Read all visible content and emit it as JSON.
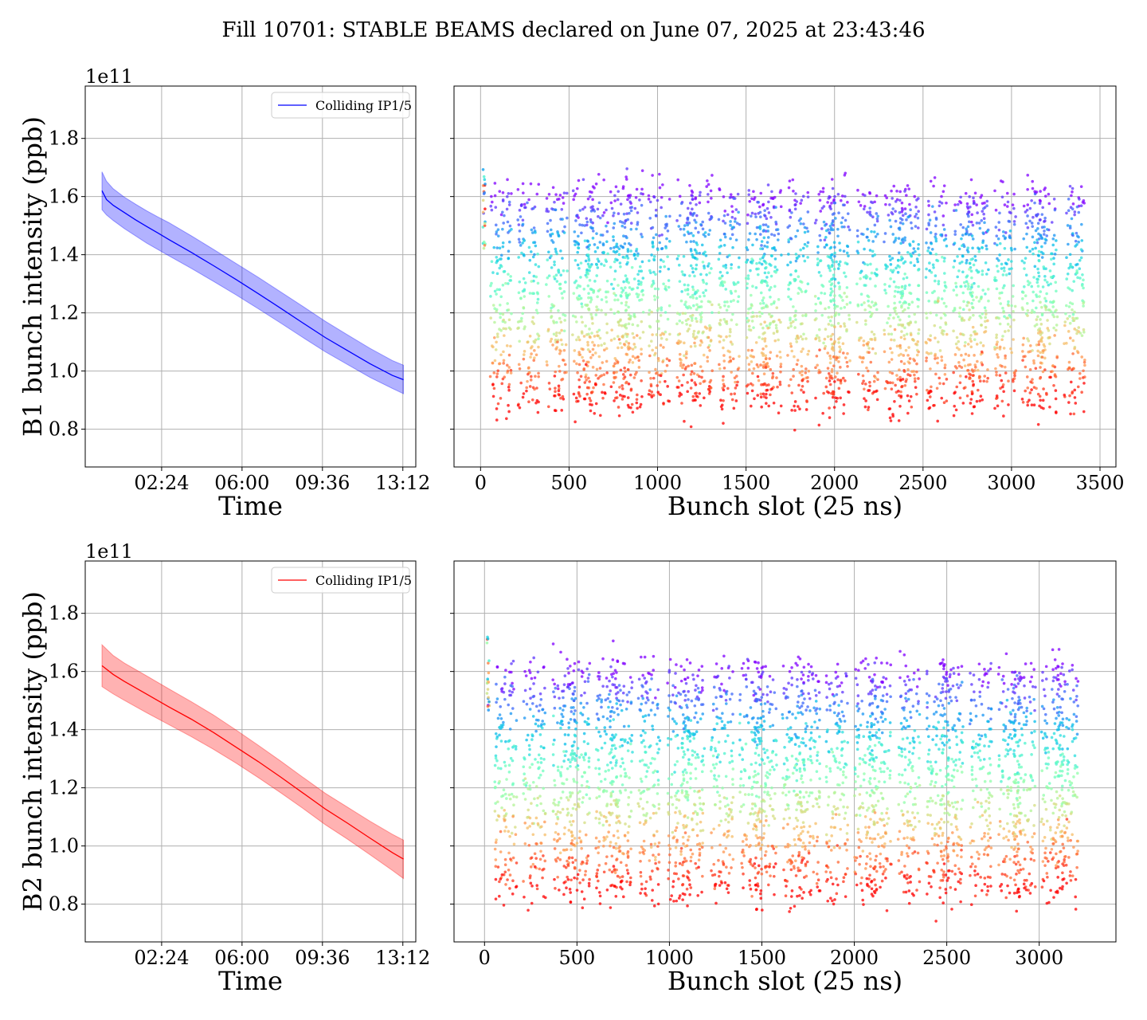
{
  "figure": {
    "title": "Fill 10701: STABLE BEAMS declared on June 07, 2025 at 23:43:46"
  },
  "colors": {
    "beam1": "#0000ff",
    "beam2": "#ff0000",
    "grid": "#b0b0b0",
    "axes": "#000000"
  },
  "chart_data": [
    {
      "id": "b1-time",
      "type": "line",
      "xlabel": "Time",
      "ylabel": "B1 bunch intensity (ppb)",
      "y_offset_text": "1e11",
      "x_unit": "hours since 23:43:46",
      "xlim": [
        -0.75,
        14.05
      ],
      "ylim": [
        0.67,
        1.98
      ],
      "x_ticks": [
        {
          "value": 2.6706,
          "label": "02:24"
        },
        {
          "value": 6.2706,
          "label": "06:00"
        },
        {
          "value": 9.8706,
          "label": "09:36"
        },
        {
          "value": 13.4706,
          "label": "13:12"
        }
      ],
      "y_ticks": [
        {
          "value": 0.8,
          "label": "0.8"
        },
        {
          "value": 1.0,
          "label": "1.0"
        },
        {
          "value": 1.2,
          "label": "1.2"
        },
        {
          "value": 1.4,
          "label": "1.4"
        },
        {
          "value": 1.6,
          "label": "1.6"
        },
        {
          "value": 1.8,
          "label": "1.8"
        }
      ],
      "grid": true,
      "legend": {
        "position": "top-right",
        "entries": [
          "Colliding IP1/5"
        ]
      },
      "series": [
        {
          "name": "Colliding IP1/5",
          "color": "#0000ff",
          "x": [
            0,
            0.2,
            0.5,
            1,
            1.5,
            2,
            2.5,
            3,
            4,
            5,
            6,
            7,
            8,
            9,
            10,
            11,
            12,
            13,
            13.5
          ],
          "mean": [
            1.62,
            1.59,
            1.57,
            1.545,
            1.52,
            1.497,
            1.475,
            1.452,
            1.408,
            1.362,
            1.315,
            1.266,
            1.216,
            1.165,
            1.115,
            1.07,
            1.025,
            0.985,
            0.97
          ],
          "lower": [
            1.555,
            1.537,
            1.518,
            1.49,
            1.465,
            1.44,
            1.418,
            1.396,
            1.353,
            1.308,
            1.262,
            1.214,
            1.165,
            1.115,
            1.066,
            1.022,
            0.978,
            0.94,
            0.922
          ],
          "upper": [
            1.685,
            1.653,
            1.627,
            1.598,
            1.574,
            1.551,
            1.53,
            1.51,
            1.465,
            1.418,
            1.37,
            1.322,
            1.272,
            1.222,
            1.171,
            1.124,
            1.078,
            1.036,
            1.02
          ]
        }
      ]
    },
    {
      "id": "b1-slot",
      "type": "scatter",
      "xlabel": "Bunch slot (25 ns)",
      "ylabel": "",
      "xlim": [
        -150,
        3590
      ],
      "ylim": [
        0.67,
        1.98
      ],
      "x_ticks": [
        0,
        500,
        1000,
        1500,
        2000,
        2500,
        3000,
        3500
      ],
      "y_ticks": [
        0.8,
        1.0,
        1.2,
        1.4,
        1.6,
        1.8
      ],
      "y_tick_labels_shown": false,
      "grid": true,
      "colormap": "rainbow",
      "trains_start": [
        55,
        210,
        370,
        520,
        600,
        735,
        800,
        950,
        1110,
        1190,
        1345,
        1500,
        1580,
        1735,
        1890,
        1970,
        2125,
        2280,
        2360,
        2515,
        2670,
        2750,
        2905,
        3060,
        3140,
        3295
      ],
      "train_length": 120,
      "y_range": [
        0.85,
        1.72
      ]
    },
    {
      "id": "b2-time",
      "type": "line",
      "xlabel": "Time",
      "ylabel": "B2 bunch intensity (ppb)",
      "y_offset_text": "1e11",
      "x_unit": "hours since 23:43:46",
      "xlim": [
        -0.75,
        14.05
      ],
      "ylim": [
        0.67,
        1.98
      ],
      "x_ticks": [
        {
          "value": 2.6706,
          "label": "02:24"
        },
        {
          "value": 6.2706,
          "label": "06:00"
        },
        {
          "value": 9.8706,
          "label": "09:36"
        },
        {
          "value": 13.4706,
          "label": "13:12"
        }
      ],
      "y_ticks": [
        {
          "value": 0.8,
          "label": "0.8"
        },
        {
          "value": 1.0,
          "label": "1.0"
        },
        {
          "value": 1.2,
          "label": "1.2"
        },
        {
          "value": 1.4,
          "label": "1.4"
        },
        {
          "value": 1.6,
          "label": "1.6"
        },
        {
          "value": 1.8,
          "label": "1.8"
        }
      ],
      "grid": true,
      "legend": {
        "position": "top-right",
        "entries": [
          "Colliding IP1/5"
        ]
      },
      "series": [
        {
          "name": "Colliding IP1/5",
          "color": "#ff0000",
          "x": [
            0,
            0.5,
            1,
            2,
            3,
            4,
            5,
            6,
            7,
            8,
            9,
            10,
            11,
            12,
            13,
            13.5
          ],
          "mean": [
            1.62,
            1.59,
            1.566,
            1.522,
            1.478,
            1.436,
            1.39,
            1.34,
            1.29,
            1.237,
            1.182,
            1.127,
            1.078,
            1.027,
            0.977,
            0.955
          ],
          "lower": [
            1.548,
            1.523,
            1.501,
            1.458,
            1.417,
            1.376,
            1.332,
            1.285,
            1.235,
            1.183,
            1.129,
            1.073,
            1.023,
            0.97,
            0.916,
            0.888
          ],
          "upper": [
            1.692,
            1.655,
            1.629,
            1.585,
            1.54,
            1.496,
            1.45,
            1.399,
            1.346,
            1.292,
            1.236,
            1.181,
            1.133,
            1.085,
            1.04,
            1.02
          ]
        }
      ]
    },
    {
      "id": "b2-slot",
      "type": "scatter",
      "xlabel": "Bunch slot (25 ns)",
      "ylabel": "",
      "xlim": [
        -165,
        3415
      ],
      "ylim": [
        0.67,
        1.98
      ],
      "x_ticks": [
        0,
        500,
        1000,
        1500,
        2000,
        2500,
        3000
      ],
      "y_ticks": [
        0.8,
        1.0,
        1.2,
        1.4,
        1.6,
        1.8
      ],
      "y_tick_labels_shown": false,
      "grid": true,
      "colormap": "rainbow",
      "trains_start": [
        55,
        210,
        370,
        450,
        600,
        680,
        830,
        990,
        1070,
        1225,
        1380,
        1460,
        1610,
        1695,
        1845,
        2000,
        2080,
        2235,
        2390,
        2470,
        2625,
        2780,
        2860,
        3010,
        3090
      ],
      "train_length": 120,
      "y_range": [
        0.8,
        1.72
      ]
    }
  ]
}
